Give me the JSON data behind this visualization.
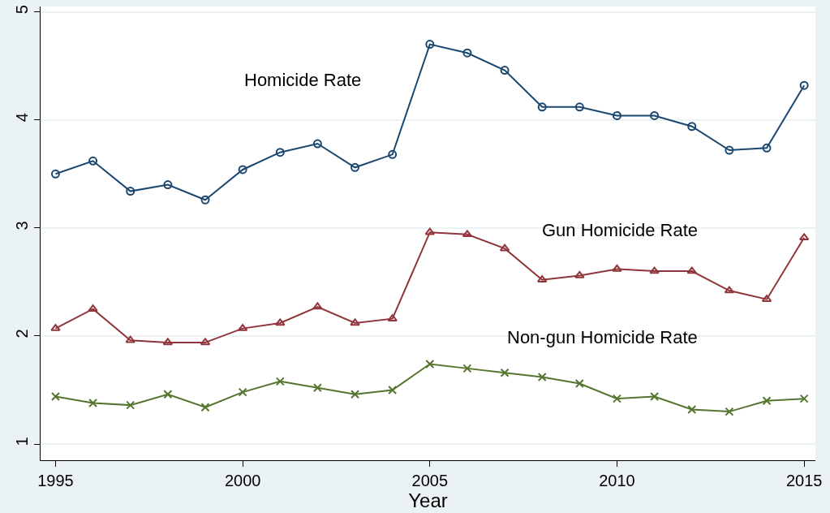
{
  "chart_data": {
    "type": "line",
    "xlabel": "Year",
    "x": [
      1995,
      1996,
      1997,
      1998,
      1999,
      2000,
      2001,
      2002,
      2003,
      2004,
      2005,
      2006,
      2007,
      2008,
      2009,
      2010,
      2011,
      2012,
      2013,
      2014,
      2015
    ],
    "series": [
      {
        "name": "Homicide Rate",
        "color": "#1a476f",
        "marker": "circle",
        "values": [
          3.5,
          3.62,
          3.34,
          3.4,
          3.26,
          3.54,
          3.7,
          3.78,
          3.56,
          3.68,
          4.7,
          4.62,
          4.46,
          4.12,
          4.12,
          4.04,
          4.04,
          3.94,
          3.72,
          3.74,
          4.32
        ]
      },
      {
        "name": "Gun Homicide Rate",
        "color": "#90353b",
        "marker": "triangle",
        "values": [
          2.07,
          2.25,
          1.96,
          1.94,
          1.94,
          2.07,
          2.12,
          2.27,
          2.12,
          2.16,
          2.96,
          2.94,
          2.81,
          2.52,
          2.56,
          2.62,
          2.6,
          2.6,
          2.42,
          2.34,
          2.91
        ]
      },
      {
        "name": "Non-gun Homicide Rate",
        "color": "#55752f",
        "marker": "cross",
        "values": [
          1.44,
          1.38,
          1.36,
          1.46,
          1.34,
          1.48,
          1.58,
          1.52,
          1.46,
          1.5,
          1.74,
          1.7,
          1.66,
          1.62,
          1.56,
          1.42,
          1.44,
          1.32,
          1.3,
          1.4,
          1.42
        ]
      }
    ],
    "xlim": [
      1994.6,
      2015.3
    ],
    "xticks": [
      1995,
      2000,
      2005,
      2010,
      2015
    ],
    "ylim": [
      0.85,
      5.05
    ],
    "yticks": [
      1,
      2,
      3,
      4,
      5
    ],
    "grid": "y"
  }
}
